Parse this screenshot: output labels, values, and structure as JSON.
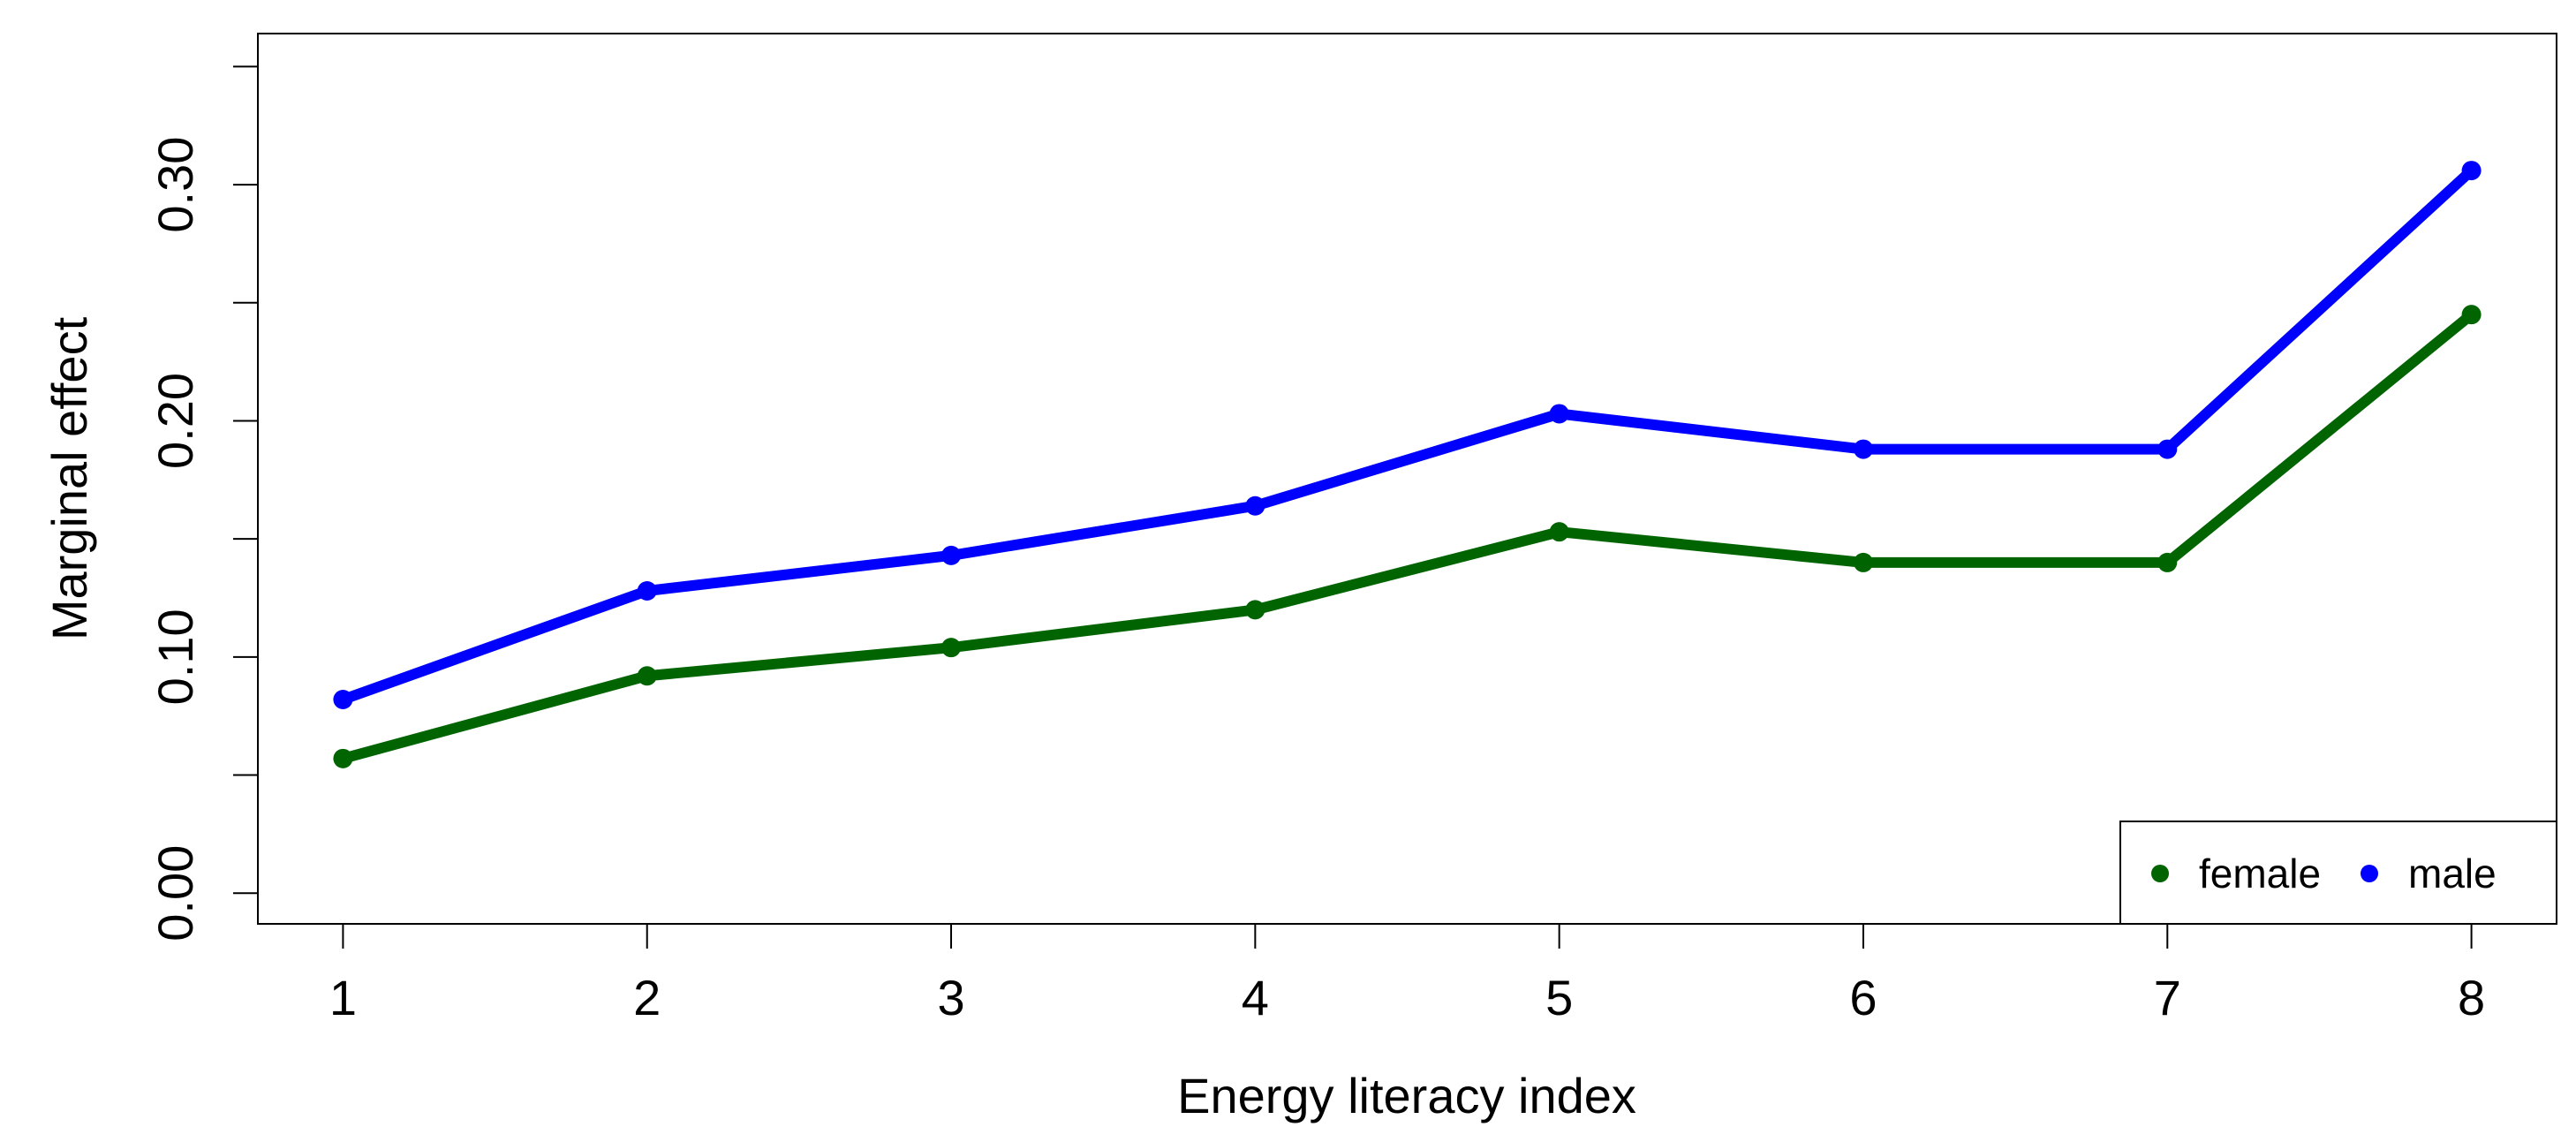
{
  "chart_data": {
    "type": "line",
    "title": "",
    "xlabel": "Energy literacy index",
    "ylabel": "Marginal effect",
    "x": [
      1,
      2,
      3,
      4,
      5,
      6,
      7,
      8
    ],
    "xticks": [
      "1",
      "2",
      "3",
      "4",
      "5",
      "6",
      "7",
      "8"
    ],
    "xlim": [
      0.72,
      8.28
    ],
    "ylim": [
      -0.013,
      0.364
    ],
    "yticks": [
      0.0,
      0.05,
      0.1,
      0.15,
      0.2,
      0.25,
      0.3,
      0.35
    ],
    "ytick_labels": [
      "0.00",
      "",
      "0.10",
      "",
      "0.20",
      "",
      "0.30",
      ""
    ],
    "grid": false,
    "legend_position": "bottom-right",
    "series": [
      {
        "name": "female",
        "color": "#006400",
        "values": [
          0.057,
          0.092,
          0.104,
          0.12,
          0.153,
          0.14,
          0.14,
          0.245
        ]
      },
      {
        "name": "male",
        "color": "#0000ff",
        "values": [
          0.082,
          0.128,
          0.143,
          0.164,
          0.203,
          0.188,
          0.188,
          0.306
        ]
      }
    ]
  }
}
